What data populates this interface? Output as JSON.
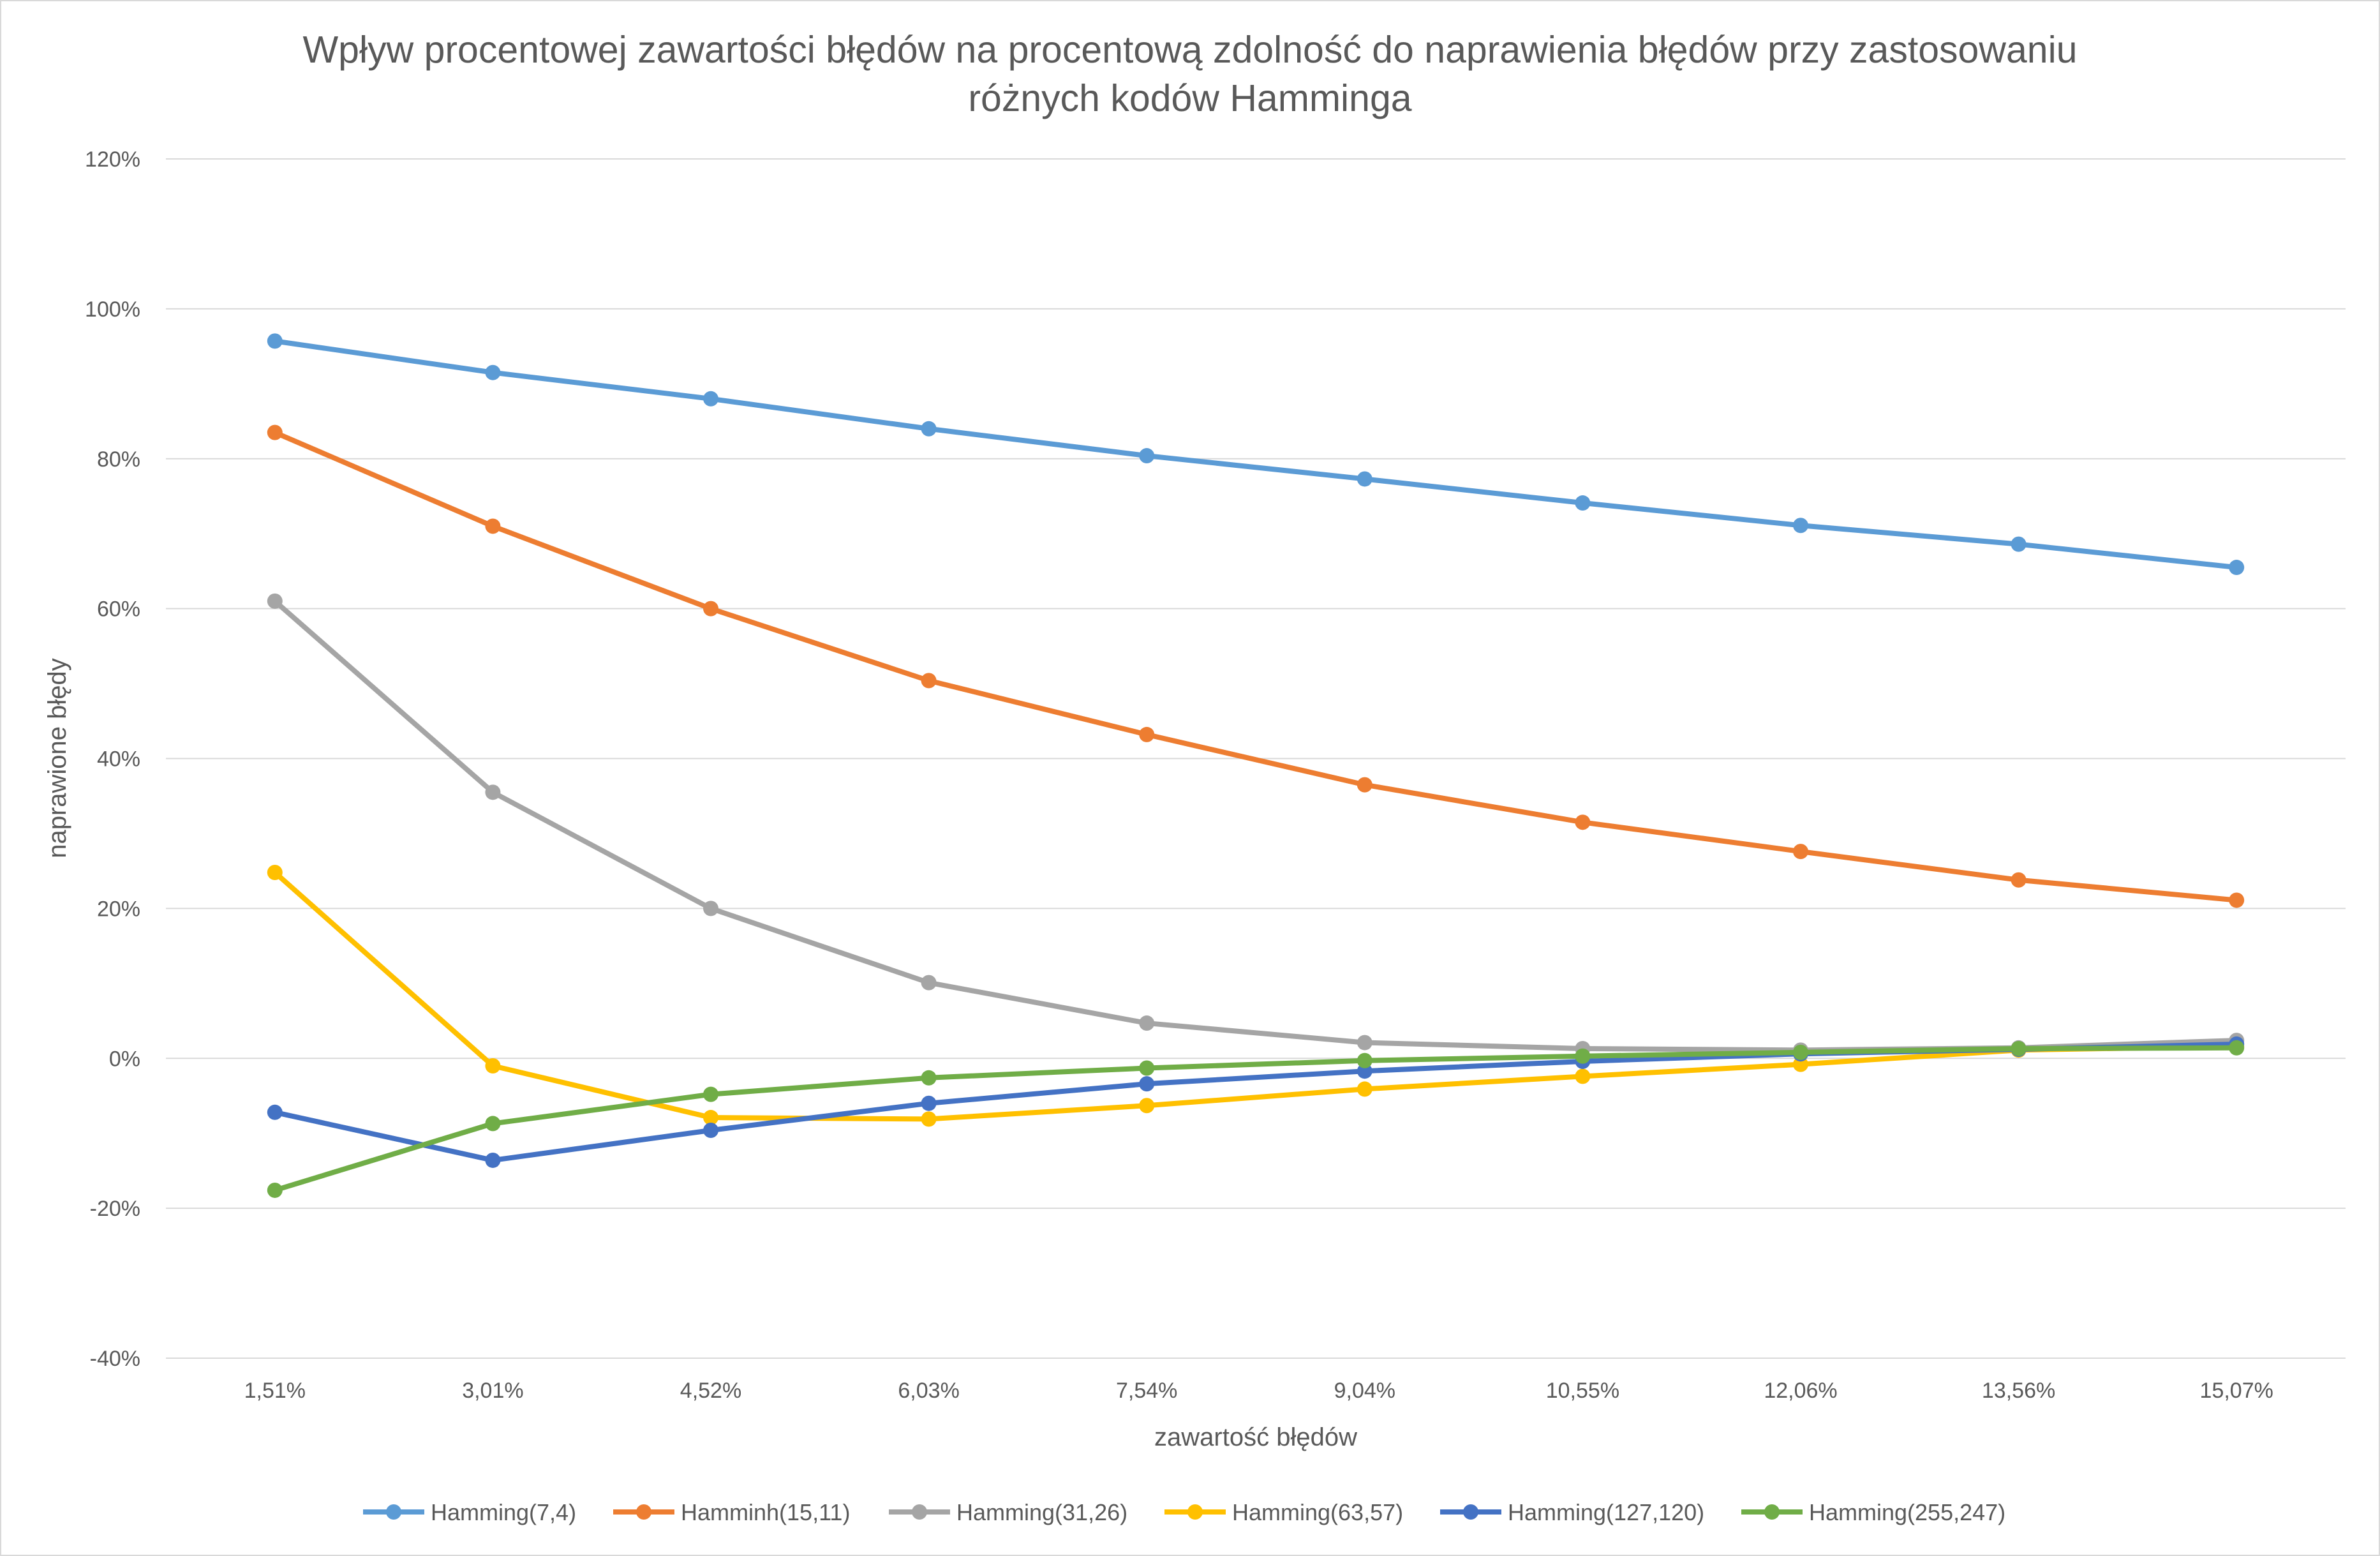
{
  "chart_data": {
    "type": "line",
    "title_lines": [
      "Wpływ procentowej zawartości błędów na procentową zdolność do naprawienia błędów przy zastosowaniu",
      "różnych kodów Hamminga"
    ],
    "xlabel": "zawartość błędów",
    "ylabel": "naprawione błędy",
    "categories": [
      "1,51%",
      "3,01%",
      "4,52%",
      "6,03%",
      "7,54%",
      "9,04%",
      "10,55%",
      "12,06%",
      "13,56%",
      "15,07%"
    ],
    "ylim": [
      -40,
      120
    ],
    "yticks": [
      -40,
      -20,
      0,
      20,
      40,
      60,
      80,
      100,
      120
    ],
    "ytick_labels": [
      "-40%",
      "-20%",
      "0%",
      "20%",
      "40%",
      "60%",
      "80%",
      "100%",
      "120%"
    ],
    "grid": true,
    "legend_position": "bottom",
    "series": [
      {
        "name": "Hamming(7,4)",
        "color": "#5b9bd5",
        "values": [
          95.7,
          91.5,
          88.0,
          84.0,
          80.4,
          77.3,
          74.1,
          71.1,
          68.6,
          65.5
        ]
      },
      {
        "name": "Hamminh(15,11)",
        "color": "#ed7d31",
        "values": [
          83.5,
          71.0,
          60.0,
          50.4,
          43.2,
          36.5,
          31.5,
          27.6,
          23.8,
          21.1
        ]
      },
      {
        "name": "Hamming(31,26)",
        "color": "#a5a5a5",
        "values": [
          61.0,
          35.5,
          20.0,
          10.1,
          4.7,
          2.1,
          1.3,
          1.1,
          1.4,
          2.4
        ]
      },
      {
        "name": "Hamming(63,57)",
        "color": "#ffc000",
        "values": [
          24.8,
          -1.0,
          -7.9,
          -8.1,
          -6.3,
          -4.1,
          -2.4,
          -0.8,
          1.1,
          1.6
        ]
      },
      {
        "name": "Hamming(127,120)",
        "color": "#4472c4",
        "values": [
          -7.2,
          -13.6,
          -9.6,
          -6.0,
          -3.4,
          -1.7,
          -0.4,
          0.6,
          1.2,
          1.9
        ]
      },
      {
        "name": "Hamming(255,247)",
        "color": "#70ad47",
        "values": [
          -17.6,
          -8.7,
          -4.8,
          -2.6,
          -1.3,
          -0.3,
          0.3,
          0.8,
          1.3,
          1.4
        ]
      }
    ]
  }
}
